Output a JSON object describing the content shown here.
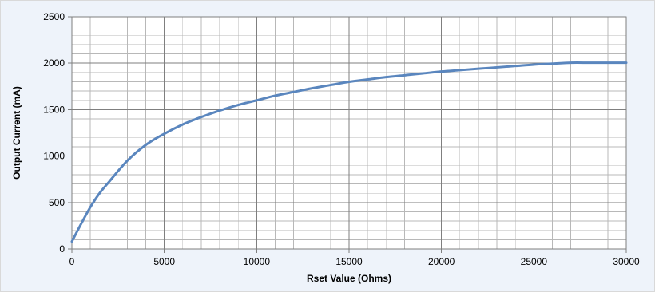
{
  "chart_data": {
    "type": "line",
    "title": "",
    "xlabel": "Rset Value (Ohms)",
    "ylabel": "Output Current (mA)",
    "xlim": [
      0,
      30000
    ],
    "ylim": [
      0,
      2500
    ],
    "x_major_ticks": [
      0,
      5000,
      10000,
      15000,
      20000,
      25000,
      30000
    ],
    "y_major_ticks": [
      0,
      500,
      1000,
      1500,
      2000,
      2500
    ],
    "x_minor_step": 1000,
    "y_minor_step": 100,
    "grid": true,
    "legend": "none",
    "colors": {
      "line": "#5a86be",
      "plot_bg": "#ffffff",
      "frame_bg": "#eef3fa",
      "grid": "#8c8c8c"
    },
    "series": [
      {
        "x": [
          0,
          500,
          1000,
          1500,
          2000,
          3000,
          4000,
          5000,
          6000,
          7000,
          8000,
          9000,
          10000,
          11000,
          12000,
          13000,
          14000,
          15000,
          16000,
          17000,
          18000,
          19000,
          20000,
          21000,
          22000,
          23000,
          24000,
          25000,
          26000,
          27000,
          28000,
          29000,
          30000
        ],
        "y": [
          80,
          270,
          450,
          600,
          720,
          950,
          1120,
          1240,
          1340,
          1420,
          1490,
          1550,
          1600,
          1650,
          1690,
          1730,
          1765,
          1800,
          1825,
          1850,
          1870,
          1890,
          1910,
          1925,
          1940,
          1955,
          1970,
          1985,
          1995,
          2005,
          2005,
          2005,
          2005
        ]
      }
    ]
  }
}
